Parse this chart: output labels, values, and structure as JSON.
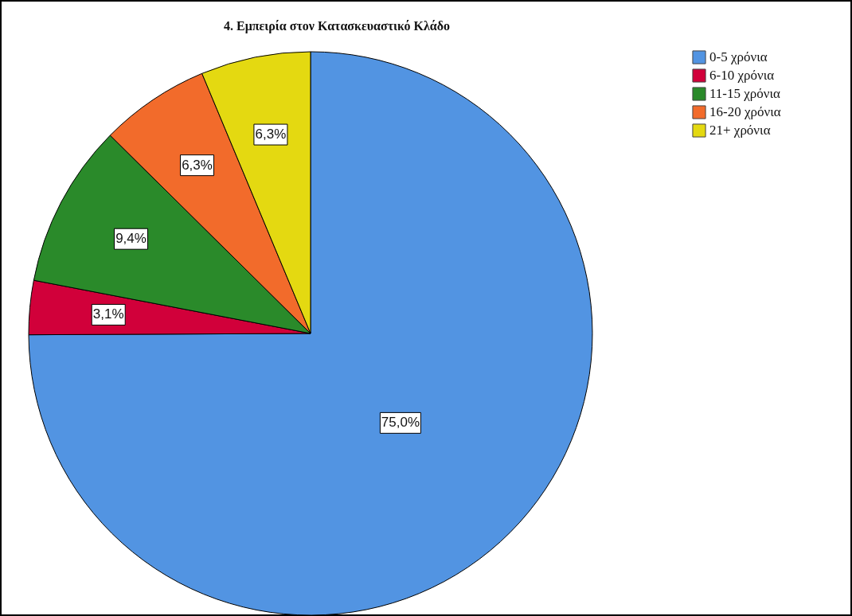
{
  "chart_data": {
    "type": "pie",
    "title": "4.  Εμπειρία στον Κατασκευαστικό Κλάδο",
    "categories": [
      "0-5 χρόνια",
      "6-10 χρόνια",
      "11-15 χρόνια",
      "16-20 χρόνια",
      "21+ χρόνια"
    ],
    "values": [
      75.0,
      3.1,
      9.4,
      6.3,
      6.3
    ],
    "value_labels": [
      "75,0%",
      "3,1%",
      "9,4%",
      "6,3%",
      "6,3%"
    ],
    "colors": [
      "#5294e2",
      "#d1003a",
      "#2a8a2a",
      "#f26b2b",
      "#e4d911"
    ],
    "legend": "top right"
  }
}
